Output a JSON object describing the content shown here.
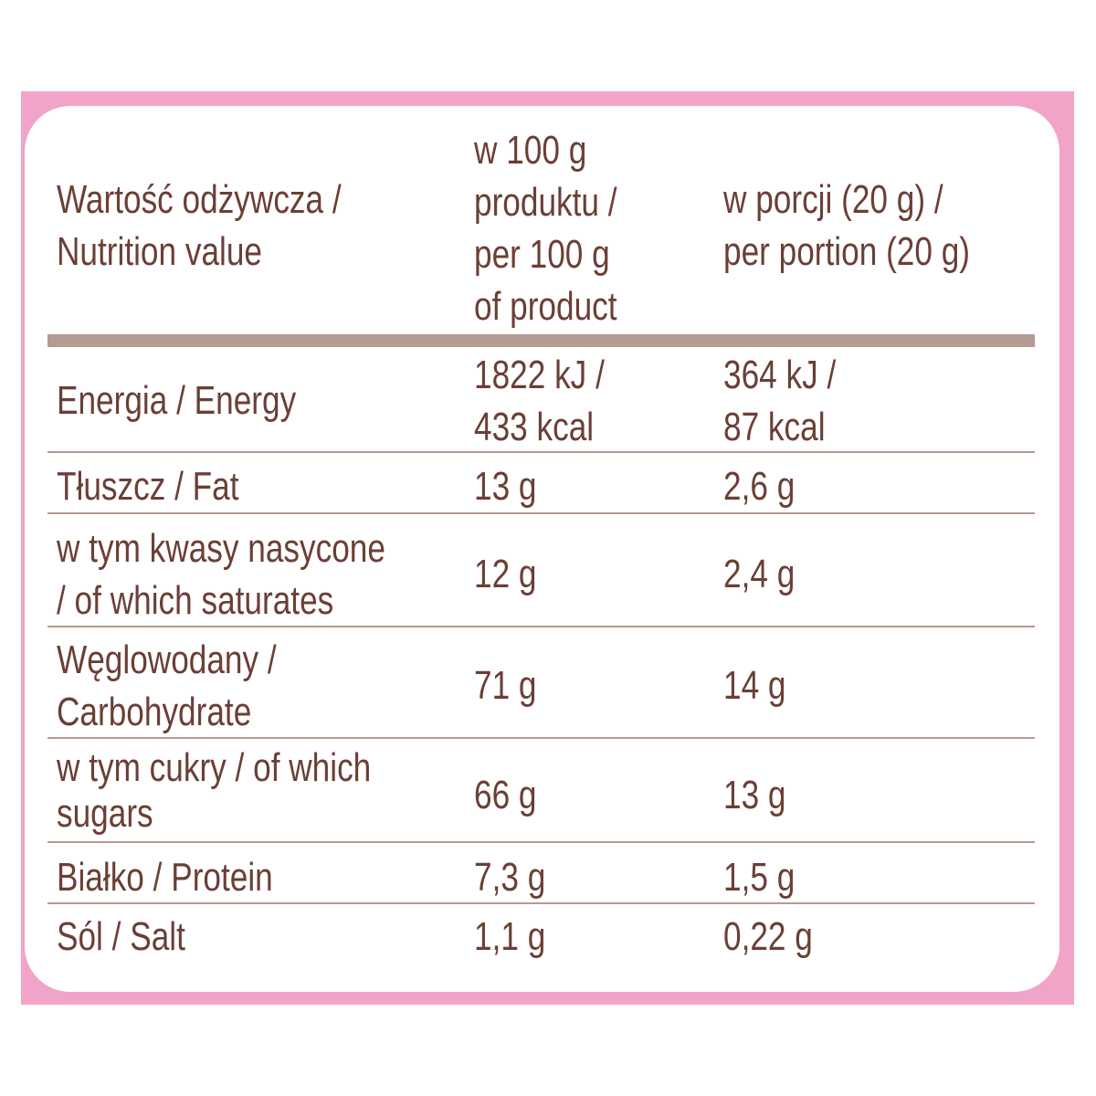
{
  "header": {
    "col1": [
      "Wartość odżywcza /",
      "Nutrition value"
    ],
    "col2": [
      "w 100 g",
      "produktu /",
      "per 100 g",
      "of product"
    ],
    "col3": [
      "w porcji (20 g) /",
      "per portion (20 g)"
    ]
  },
  "rows": [
    {
      "label": [
        "Energia / Energy"
      ],
      "per100": [
        "1822 kJ /",
        "433 kcal"
      ],
      "portion": [
        "364 kJ /",
        "87 kcal"
      ]
    },
    {
      "label": [
        "Tłuszcz / Fat"
      ],
      "per100": [
        "13 g"
      ],
      "portion": [
        "2,6 g"
      ]
    },
    {
      "label": [
        "w tym kwasy nasycone",
        "/ of which saturates"
      ],
      "per100": [
        "12 g"
      ],
      "portion": [
        "2,4 g"
      ]
    },
    {
      "label": [
        "Węglowodany /",
        "Carbohydrate"
      ],
      "per100": [
        "71 g"
      ],
      "portion": [
        "14 g"
      ]
    },
    {
      "label": [
        "w tym cukry / of which",
        "sugars"
      ],
      "per100": [
        "66 g"
      ],
      "portion": [
        "13 g"
      ]
    },
    {
      "label": [
        "Białko / Protein"
      ],
      "per100": [
        "7,3 g"
      ],
      "portion": [
        "1,5 g"
      ]
    },
    {
      "label": [
        "Sól / Salt"
      ],
      "per100": [
        "1,1 g"
      ],
      "portion": [
        "0,22 g"
      ]
    }
  ],
  "colors": {
    "frame": "#f2a4c8",
    "text": "#6b3f35",
    "rule": "#b59a91"
  }
}
